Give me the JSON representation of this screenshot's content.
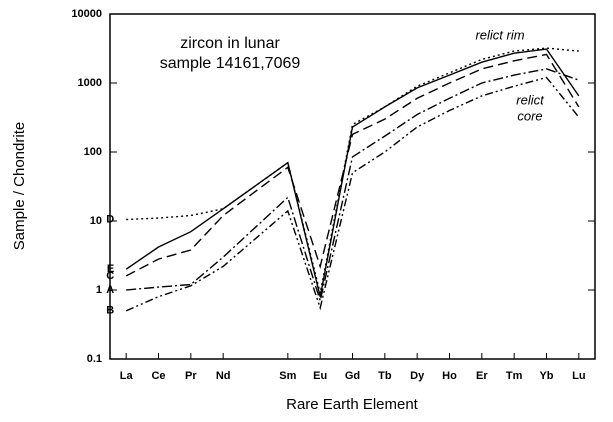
{
  "chart_data": {
    "type": "line",
    "title": [
      "zircon in lunar",
      "sample 14161,7069"
    ],
    "annotations": [
      "relict rim",
      "relict",
      "core"
    ],
    "x_label": "Rare Earth Element",
    "y_label": "Sample / Chondrite",
    "x": [
      57,
      58,
      59,
      60,
      62,
      63,
      64,
      65,
      66,
      67,
      68,
      69,
      70,
      71
    ],
    "xlim": [
      56.5,
      71.5
    ],
    "xticks": [
      {
        "value": 57,
        "label": "La"
      },
      {
        "value": 58,
        "label": "Ce"
      },
      {
        "value": 59,
        "label": "Pr"
      },
      {
        "value": 60,
        "label": "Nd"
      },
      {
        "value": 62,
        "label": "Sm"
      },
      {
        "value": 63,
        "label": "Eu"
      },
      {
        "value": 64,
        "label": "Gd"
      },
      {
        "value": 65,
        "label": "Tb"
      },
      {
        "value": 66,
        "label": "Dy"
      },
      {
        "value": 67,
        "label": "Ho"
      },
      {
        "value": 68,
        "label": "Er"
      },
      {
        "value": 69,
        "label": "Tm"
      },
      {
        "value": 70,
        "label": "Yb"
      },
      {
        "value": 71,
        "label": "Lu"
      }
    ],
    "ylim": [
      0.1,
      10000
    ],
    "yticks": [
      0.1,
      1,
      10,
      100,
      1000,
      10000
    ],
    "y_scale": "log",
    "series": [
      {
        "name": "D",
        "color": "#000000",
        "dash": "2,3",
        "values": [
          10.5,
          11,
          12,
          15,
          70,
          0.9,
          250,
          450,
          900,
          1400,
          2200,
          2900,
          3200,
          2900
        ]
      },
      {
        "name": "E",
        "color": "#000000",
        "dash": "none",
        "values": [
          2,
          4.2,
          7,
          15,
          70,
          0.8,
          230,
          450,
          850,
          1300,
          2000,
          2700,
          3100,
          650
        ]
      },
      {
        "name": "C",
        "color": "#000000",
        "dash": "10,5",
        "values": [
          1.6,
          2.8,
          3.8,
          12,
          60,
          2.2,
          180,
          300,
          600,
          1000,
          1600,
          2100,
          2600,
          450
        ]
      },
      {
        "name": "A",
        "color": "#000000",
        "dash": "10,3,2,3",
        "values": [
          1.0,
          1.1,
          1.2,
          3,
          22,
          0.7,
          85,
          170,
          350,
          600,
          1000,
          1300,
          1600,
          1100
        ]
      },
      {
        "name": "B",
        "color": "#000000",
        "dash": "8,3,2,3,2,3",
        "values": [
          0.5,
          0.8,
          1.15,
          2.2,
          14,
          0.55,
          50,
          100,
          230,
          400,
          650,
          900,
          1200,
          320
        ]
      }
    ]
  }
}
